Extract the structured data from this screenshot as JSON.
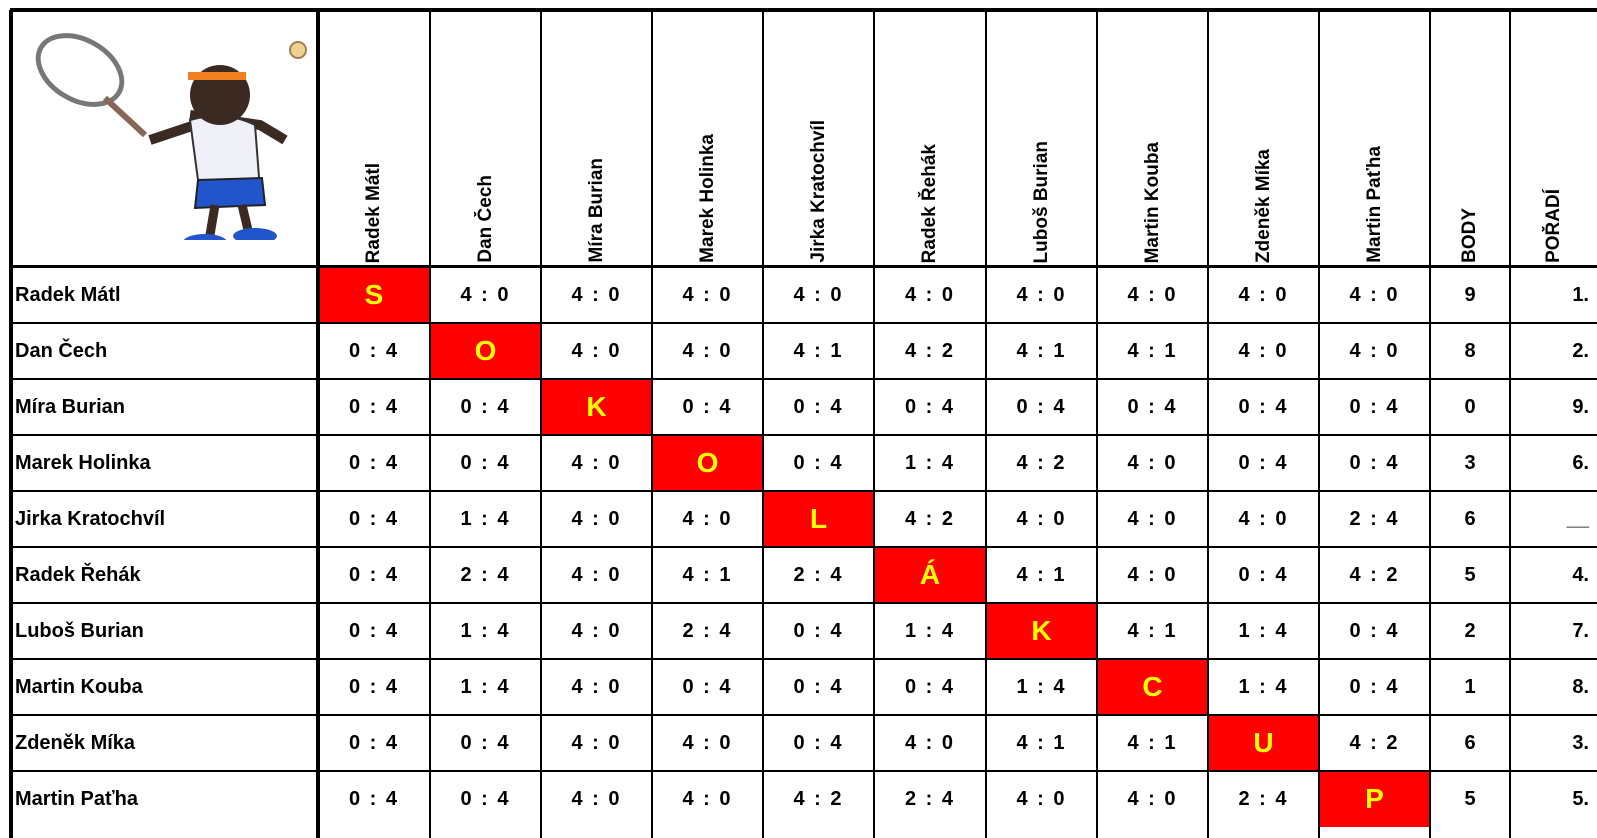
{
  "header": {
    "players": [
      "Radek Mátl",
      "Dan Čech",
      "Míra Burian",
      "Marek Holinka",
      "Jirka Kratochvíl",
      "Radek Řehák",
      "Luboš Burian",
      "Martin Kouba",
      "Zdeněk Míka",
      "Martin Paťha"
    ],
    "body": "BODY",
    "poradi": "POŘADÍ"
  },
  "rows": [
    {
      "name": "Radek Mátl",
      "cells": [
        "S",
        "4 : 0",
        "4 : 0",
        "4 : 0",
        "4 : 0",
        "4 : 0",
        "4 : 0",
        "4 : 0",
        "4 : 0",
        "4 : 0"
      ],
      "body": 9,
      "poradi": "1."
    },
    {
      "name": "Dan Čech",
      "cells": [
        "0 : 4",
        "O",
        "4 : 0",
        "4 : 0",
        "4 : 1",
        "4 : 2",
        "4 : 1",
        "4 : 1",
        "4 : 0",
        "4 : 0"
      ],
      "body": 8,
      "poradi": "2."
    },
    {
      "name": "Míra Burian",
      "cells": [
        "0 : 4",
        "0 : 4",
        "K",
        "0 : 4",
        "0 : 4",
        "0 : 4",
        "0 : 4",
        "0 : 4",
        "0 : 4",
        "0 : 4"
      ],
      "body": 0,
      "poradi": "9."
    },
    {
      "name": "Marek Holinka",
      "cells": [
        "0 : 4",
        "0 : 4",
        "4 : 0",
        "O",
        "0 : 4",
        "1 : 4",
        "4 : 2",
        "4 : 0",
        "0 : 4",
        "0 : 4"
      ],
      "body": 3,
      "poradi": "6."
    },
    {
      "name": "Jirka Kratochvíl",
      "cells": [
        "0 : 4",
        "1 : 4",
        "4 : 0",
        "4 : 0",
        "L",
        "4 : 2",
        "4 : 0",
        "4 : 0",
        "4 : 0",
        "2 : 4"
      ],
      "body": 6,
      "poradi": "__"
    },
    {
      "name": "Radek Řehák",
      "cells": [
        "0 : 4",
        "2 : 4",
        "4 : 0",
        "4 : 1",
        "2 : 4",
        "Á",
        "4 : 1",
        "4 : 0",
        "0 : 4",
        "4 : 2"
      ],
      "body": 5,
      "poradi": "4."
    },
    {
      "name": "Luboš Burian",
      "cells": [
        "0 : 4",
        "1 : 4",
        "4 : 0",
        "2 : 4",
        "0 : 4",
        "1 : 4",
        "K",
        "4 : 1",
        "1 : 4",
        "0 : 4"
      ],
      "body": 2,
      "poradi": "7."
    },
    {
      "name": "Martin Kouba",
      "cells": [
        "0 : 4",
        "1 : 4",
        "4 : 0",
        "0 : 4",
        "0 : 4",
        "0 : 4",
        "1 : 4",
        "C",
        "1 : 4",
        "0 : 4"
      ],
      "body": 1,
      "poradi": "8."
    },
    {
      "name": "Zdeněk Míka",
      "cells": [
        "0 : 4",
        "0 : 4",
        "4 : 0",
        "4 : 0",
        "0 : 4",
        "4 : 0",
        "4 : 1",
        "4 : 1",
        "U",
        "4 : 2"
      ],
      "body": 6,
      "poradi": "3."
    },
    {
      "name": "Martin Paťha",
      "cells": [
        "0 : 4",
        "0 : 4",
        "4 : 0",
        "4 : 0",
        "4 : 2",
        "2 : 4",
        "4 : 0",
        "4 : 0",
        "2 : 4",
        "P"
      ],
      "body": 5,
      "poradi": "5."
    }
  ]
}
